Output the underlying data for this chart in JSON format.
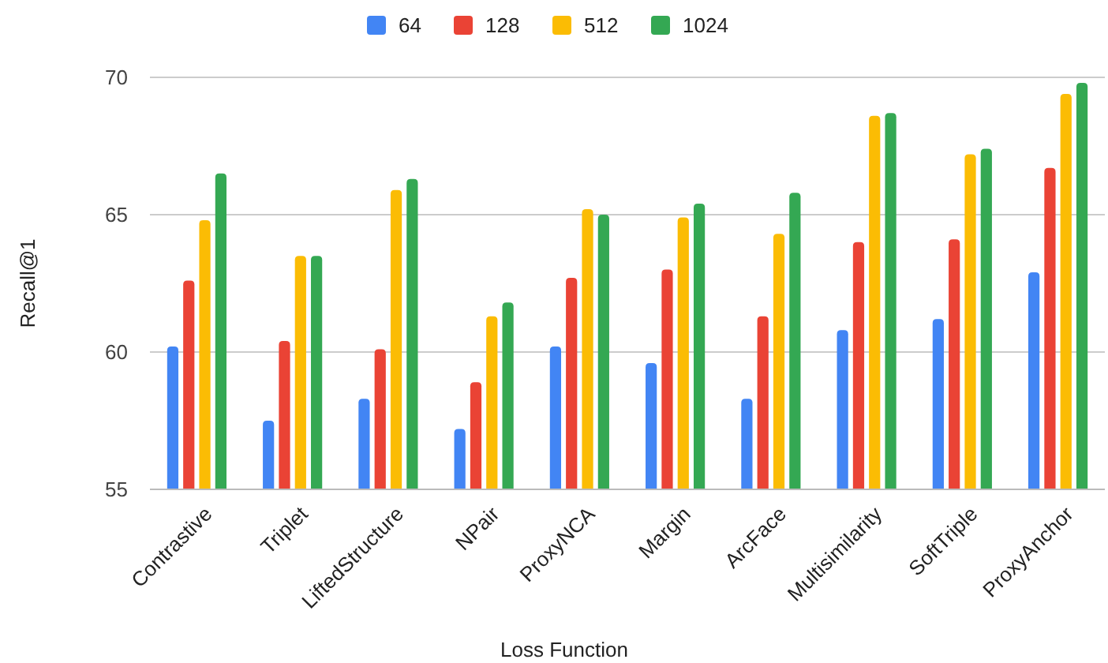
{
  "chart_data": {
    "type": "bar",
    "xlabel": "Loss Function",
    "ylabel": "Recall@1",
    "categories": [
      "Contrastive",
      "Triplet",
      "LiftedStructure",
      "NPair",
      "ProxyNCA",
      "Margin",
      "ArcFace",
      "Multisimilarity",
      "SoftTriple",
      "ProxyAnchor"
    ],
    "series": [
      {
        "name": "64",
        "color": "#4285f4",
        "values": [
          60.2,
          57.5,
          58.3,
          57.2,
          60.2,
          59.6,
          58.3,
          60.8,
          61.2,
          62.9
        ]
      },
      {
        "name": "128",
        "color": "#ea4335",
        "values": [
          62.6,
          60.4,
          60.1,
          58.9,
          62.7,
          63.0,
          61.3,
          64.0,
          64.1,
          66.7
        ]
      },
      {
        "name": "512",
        "color": "#fbbc04",
        "values": [
          64.8,
          63.5,
          65.9,
          61.3,
          65.2,
          64.9,
          64.3,
          68.6,
          67.2,
          69.4
        ]
      },
      {
        "name": "1024",
        "color": "#34a853",
        "values": [
          66.5,
          63.5,
          66.3,
          61.8,
          65.0,
          65.4,
          65.8,
          68.7,
          67.4,
          69.8
        ]
      }
    ],
    "ylim": [
      55,
      70
    ],
    "yticks": [
      55,
      60,
      65,
      70
    ],
    "grid": "y",
    "legend": "top"
  }
}
